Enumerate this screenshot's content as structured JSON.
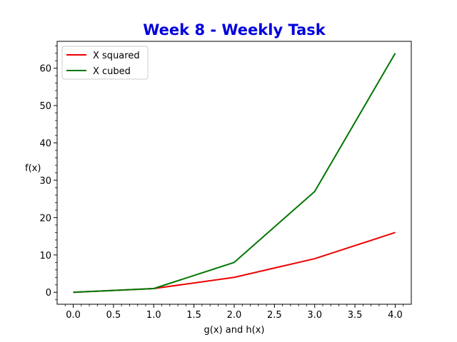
{
  "chart_data": {
    "type": "line",
    "title": "Week 8 - Weekly Task",
    "title_color": "#0000dd",
    "xlabel": "g(x) and h(x)",
    "ylabel": "f(x)",
    "x": [
      0,
      1,
      2,
      3,
      4
    ],
    "series": [
      {
        "name": "X squared",
        "color": "#ee0000",
        "values": [
          0,
          1,
          4,
          9,
          16
        ]
      },
      {
        "name": "X cubed",
        "color": "#007700",
        "values": [
          0,
          1,
          8,
          27,
          64
        ]
      }
    ],
    "xlim": [
      -0.2,
      4.2
    ],
    "ylim": [
      -3.2,
      67.2
    ],
    "xticks": [
      0.0,
      0.5,
      1.0,
      1.5,
      2.0,
      2.5,
      3.0,
      3.5,
      4.0
    ],
    "xtick_labels": [
      "0.0",
      "0.5",
      "1.0",
      "1.5",
      "2.0",
      "2.5",
      "3.0",
      "3.5",
      "4.0"
    ],
    "yticks": [
      0,
      10,
      20,
      30,
      40,
      50,
      60
    ],
    "ytick_labels": [
      "0",
      "10",
      "20",
      "30",
      "40",
      "50",
      "60"
    ],
    "grid": false,
    "legend_position": "top-left"
  }
}
